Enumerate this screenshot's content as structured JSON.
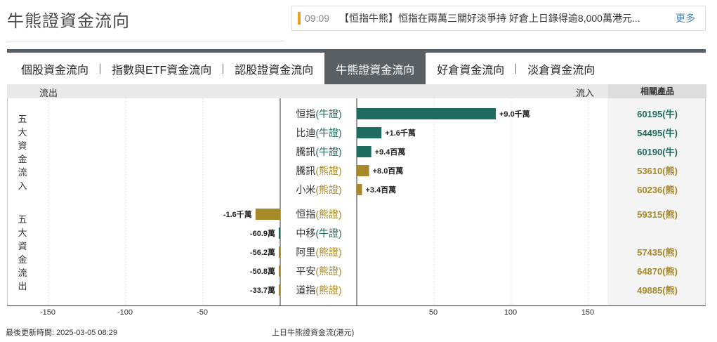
{
  "page": {
    "title": "牛熊證資金流向"
  },
  "ticker": {
    "time": "09:09",
    "text": "【恒指牛熊】恒指在兩萬三關好淡爭持 好倉上日錄得逾8,000萬港元...",
    "more_label": "更多"
  },
  "tabs": [
    {
      "label": "個股資金流向",
      "active": false
    },
    {
      "label": "指數與ETF資金流向",
      "active": false
    },
    {
      "label": "認股證資金流向",
      "active": false
    },
    {
      "label": "牛熊證資金流向",
      "active": true
    },
    {
      "label": "好倉資金流向",
      "active": false
    },
    {
      "label": "淡倉資金流向",
      "active": false
    }
  ],
  "table_header": {
    "outflow": "流出",
    "inflow": "流入",
    "related": "相關產品"
  },
  "groups": {
    "inflow_label": "五大資金流入",
    "outflow_label": "五大資金流出"
  },
  "colors": {
    "bull": "#1f6b5e",
    "bear": "#a8892a",
    "bull_text": "#1f6b5e",
    "bear_text": "#a8892a"
  },
  "chart_data": {
    "type": "bar",
    "orientation": "horizontal",
    "unit": "百萬港元",
    "xlim": [
      -175,
      175
    ],
    "xticks": [
      -150,
      -100,
      -50,
      50,
      100,
      150
    ],
    "xtick_labels": [
      "-150",
      "-100",
      "-50",
      "50",
      "100",
      "150"
    ],
    "xlabel": "上日牛熊證資金流(港元)",
    "inflow": [
      {
        "name": "恒指",
        "type_label": "(牛證)",
        "kind": "bull",
        "value": 90,
        "value_label": "+9.0千萬",
        "product": "60195(牛)"
      },
      {
        "name": "比迪",
        "type_label": "(牛證)",
        "kind": "bull",
        "value": 16,
        "value_label": "+1.6千萬",
        "product": "54495(牛)"
      },
      {
        "name": "騰訊",
        "type_label": "(牛證)",
        "kind": "bull",
        "value": 9.4,
        "value_label": "+9.4百萬",
        "product": "60190(牛)"
      },
      {
        "name": "騰訊",
        "type_label": "(熊證)",
        "kind": "bear",
        "value": 8.0,
        "value_label": "+8.0百萬",
        "product": "53610(熊)"
      },
      {
        "name": "小米",
        "type_label": "(熊證)",
        "kind": "bear",
        "value": 3.4,
        "value_label": "+3.4百萬",
        "product": "60236(熊)"
      }
    ],
    "outflow": [
      {
        "name": "恒指",
        "type_label": "(熊證)",
        "kind": "bear",
        "value": -16,
        "value_label": "-1.6千萬",
        "product": "59315(熊)"
      },
      {
        "name": "中移",
        "type_label": "(牛證)",
        "kind": "bull",
        "value": -0.609,
        "value_label": "-60.9萬",
        "product": ""
      },
      {
        "name": "阿里",
        "type_label": "(熊證)",
        "kind": "bear",
        "value": -0.562,
        "value_label": "-56.2萬",
        "product": "57435(熊)"
      },
      {
        "name": "平安",
        "type_label": "(熊證)",
        "kind": "bear",
        "value": -0.508,
        "value_label": "-50.8萬",
        "product": "64870(熊)"
      },
      {
        "name": "道指",
        "type_label": "(熊證)",
        "kind": "bear",
        "value": -0.337,
        "value_label": "-33.7萬",
        "product": "49885(熊)"
      }
    ]
  },
  "footer": {
    "updated": "最後更新時間: 2025-03-05 08:29"
  }
}
